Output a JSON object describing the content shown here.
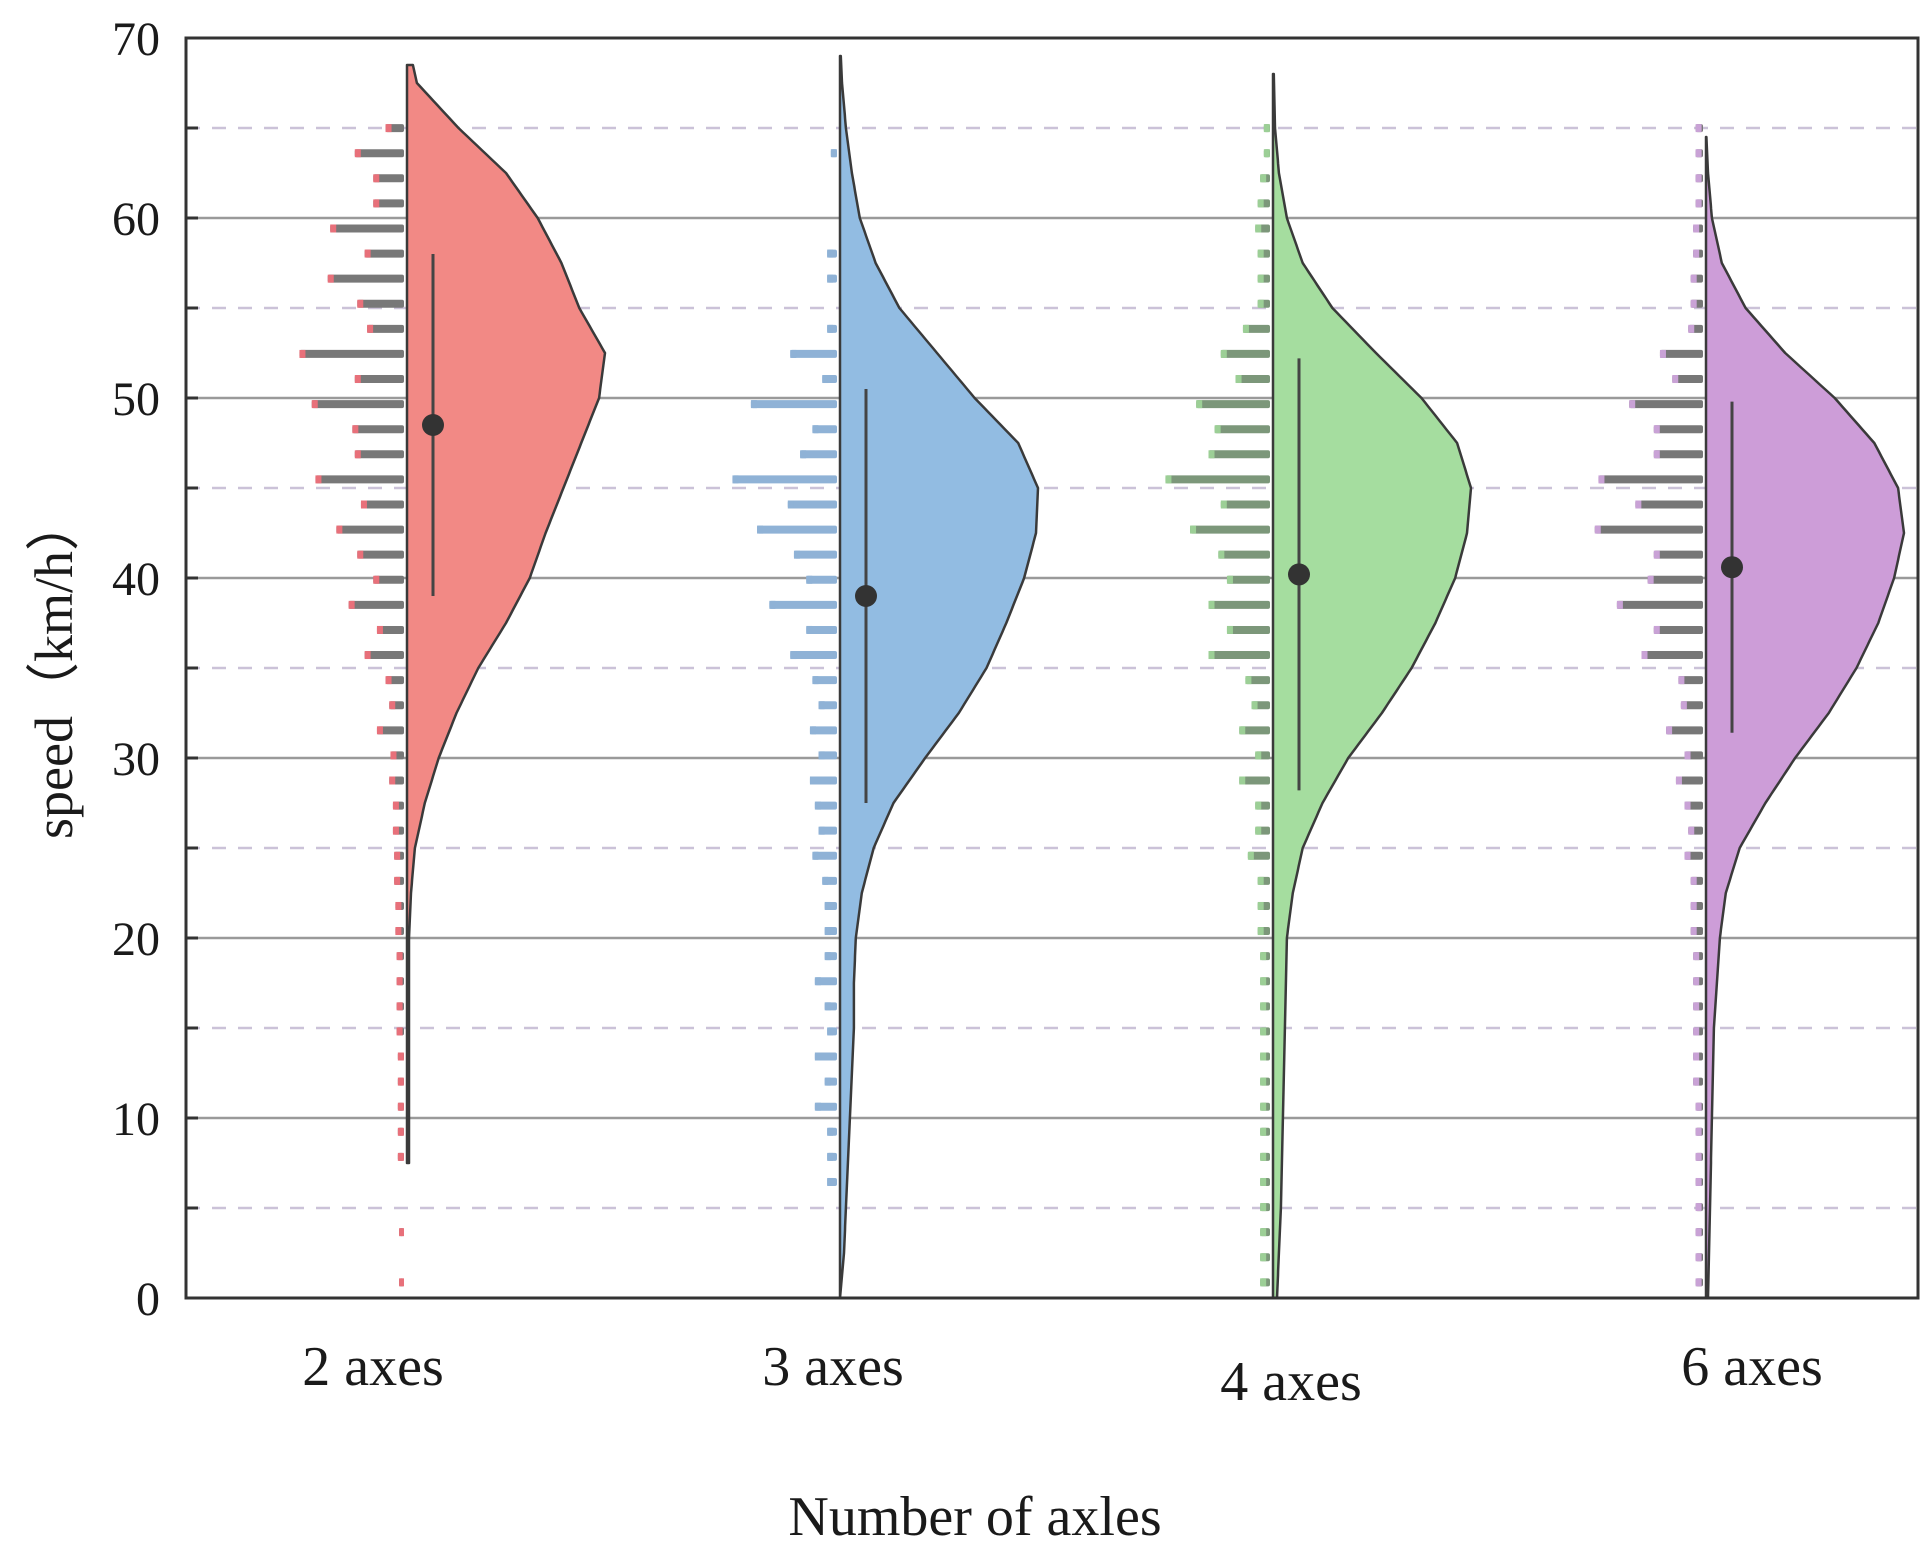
{
  "chart_data": {
    "type": "half-violin with histogram",
    "title": "",
    "xlabel": "Number of axles",
    "ylabel": "speed（km/h）",
    "ylim": [
      0,
      70
    ],
    "yticks": [
      "0",
      "10",
      "20",
      "30",
      "40",
      "50",
      "60",
      "70"
    ],
    "grid": {
      "major": "solid every 10",
      "minor": "dashed every 5"
    },
    "categories": [
      "2 axes",
      "3 axes",
      "4 axes",
      "6 axes"
    ],
    "density_y": [
      0,
      2.5,
      5,
      7.5,
      10,
      12.5,
      15,
      17.5,
      20,
      22.5,
      25,
      27.5,
      30,
      32.5,
      35,
      37.5,
      40,
      42.5,
      45,
      47.5,
      50,
      52.5,
      55,
      57.5,
      60,
      62.5,
      65,
      67.5,
      70
    ],
    "hist_bin_start": 0.87,
    "hist_bin_width": 1.394,
    "series": [
      {
        "name": "2 axes",
        "fill": "#f28985",
        "hist_color": "#787878",
        "hist_tip": "#e8707a",
        "range": [
          7.5,
          68.5
        ],
        "mean": 48.5,
        "whisker": [
          39,
          58
        ],
        "density": [
          0,
          0,
          0,
          0.01,
          0.01,
          0.01,
          0.01,
          0.01,
          0.01,
          0.02,
          0.04,
          0.09,
          0.16,
          0.25,
          0.36,
          0.5,
          0.62,
          0.7,
          0.79,
          0.88,
          0.97,
          1.0,
          0.87,
          0.78,
          0.66,
          0.5,
          0.26,
          0.05,
          0
        ],
        "hist": [
          4,
          0,
          4,
          0,
          0,
          5,
          5,
          5,
          5,
          5,
          6,
          6,
          6,
          6,
          7,
          7,
          8,
          8,
          9,
          9,
          12,
          11,
          22,
          12,
          15,
          32,
          22,
          45,
          25,
          38,
          55,
          35,
          72,
          40,
          42,
          75,
          40,
          85,
          30,
          38,
          62,
          32,
          60,
          25,
          25,
          40,
          15
        ]
      },
      {
        "name": "3 axes",
        "fill": "#92bce2",
        "hist_color": "#8fb2d6",
        "hist_tip": "#8fb2d6",
        "range": [
          0,
          69
        ],
        "mean": 39,
        "whisker": [
          27.5,
          50.5
        ],
        "density": [
          0,
          0.02,
          0.03,
          0.04,
          0.05,
          0.06,
          0.07,
          0.07,
          0.08,
          0.11,
          0.17,
          0.27,
          0.43,
          0.6,
          0.74,
          0.84,
          0.93,
          0.99,
          1.0,
          0.9,
          0.68,
          0.49,
          0.3,
          0.18,
          0.1,
          0.06,
          0.03,
          0.01,
          0
        ],
        "hist": [
          0,
          0,
          0,
          0,
          8,
          8,
          8,
          18,
          10,
          18,
          8,
          10,
          18,
          10,
          10,
          10,
          12,
          20,
          15,
          18,
          22,
          15,
          22,
          15,
          20,
          38,
          25,
          55,
          25,
          35,
          65,
          40,
          85,
          30,
          20,
          70,
          12,
          38,
          8,
          0,
          8,
          8,
          0,
          0,
          0,
          5,
          0
        ]
      },
      {
        "name": "4 axes",
        "fill": "#a5dd9f",
        "hist_color": "#7c977a",
        "hist_tip": "#9ccf96",
        "range": [
          0,
          68
        ],
        "mean": 40.2,
        "whisker": [
          28.2,
          52.2
        ],
        "density": [
          0.02,
          0.03,
          0.04,
          0.045,
          0.05,
          0.055,
          0.06,
          0.065,
          0.07,
          0.1,
          0.15,
          0.25,
          0.38,
          0.55,
          0.7,
          0.82,
          0.92,
          0.98,
          1.0,
          0.93,
          0.75,
          0.52,
          0.3,
          0.15,
          0.07,
          0.03,
          0.01,
          0.005,
          0
        ],
        "hist": [
          8,
          8,
          8,
          8,
          8,
          8,
          8,
          8,
          8,
          8,
          8,
          8,
          8,
          8,
          10,
          10,
          10,
          18,
          12,
          12,
          25,
          12,
          25,
          15,
          20,
          50,
          35,
          50,
          35,
          42,
          65,
          40,
          85,
          50,
          45,
          60,
          28,
          40,
          22,
          10,
          10,
          10,
          12,
          10,
          8,
          5,
          5
        ]
      },
      {
        "name": "6 axes",
        "fill": "#cd9dd8",
        "hist_color": "#777777",
        "hist_tip": "#c9a2d6",
        "range": [
          0,
          64.5
        ],
        "mean": 40.6,
        "whisker": [
          31.4,
          49.8
        ],
        "density": [
          0.01,
          0.015,
          0.02,
          0.025,
          0.03,
          0.035,
          0.04,
          0.055,
          0.07,
          0.1,
          0.17,
          0.3,
          0.45,
          0.62,
          0.76,
          0.87,
          0.95,
          1.0,
          0.97,
          0.85,
          0.65,
          0.4,
          0.2,
          0.08,
          0.03,
          0.01,
          0,
          0,
          0
        ],
        "hist": [
          6,
          6,
          6,
          6,
          6,
          6,
          6,
          6,
          8,
          8,
          8,
          8,
          8,
          8,
          10,
          10,
          10,
          15,
          12,
          15,
          22,
          15,
          30,
          18,
          20,
          50,
          40,
          70,
          45,
          40,
          88,
          55,
          85,
          40,
          40,
          60,
          25,
          35,
          12,
          10,
          10,
          8,
          8,
          6,
          6,
          6,
          6
        ]
      }
    ]
  }
}
